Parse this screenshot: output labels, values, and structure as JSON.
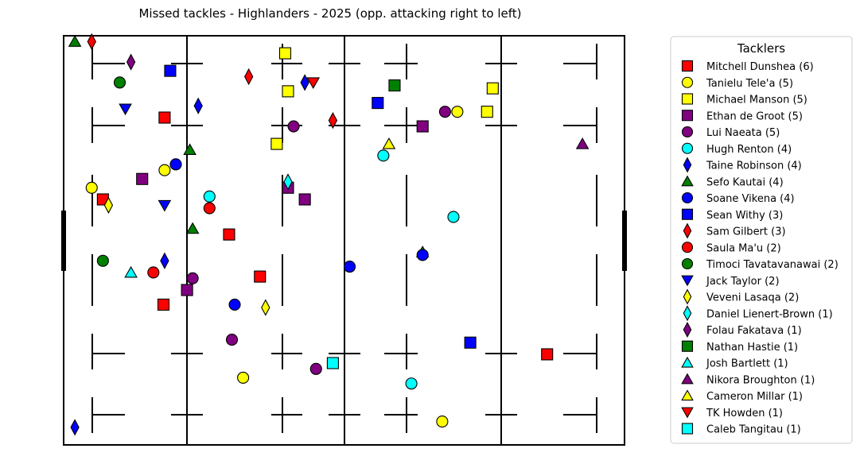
{
  "chart_data": {
    "type": "scatter",
    "title": "Missed tackles - Highlanders - 2025  (opp. attacking right to left)",
    "xlim": [
      0,
      100
    ],
    "ylim": [
      0,
      70
    ],
    "grid": false,
    "legend": {
      "title": "Tacklers",
      "placement": "right"
    },
    "series": [
      {
        "name": "Mitchell Dunshea (6)",
        "marker": "square",
        "color": "#ff0000",
        "points": [
          [
            7.0,
            42.0
          ],
          [
            29.5,
            36.0
          ],
          [
            17.8,
            24.0
          ],
          [
            35.0,
            28.8
          ],
          [
            86.2,
            15.5
          ],
          [
            18.0,
            56.0
          ]
        ]
      },
      {
        "name": "Tanielu Tele'a (5)",
        "marker": "circle",
        "color": "#ffff00",
        "points": [
          [
            5.0,
            44.0
          ],
          [
            18.0,
            47.0
          ],
          [
            70.2,
            57.0
          ],
          [
            32.0,
            11.5
          ],
          [
            67.5,
            4.0
          ]
        ]
      },
      {
        "name": "Michael Manson (5)",
        "marker": "square",
        "color": "#ffff00",
        "points": [
          [
            39.5,
            67.0
          ],
          [
            40.0,
            60.5
          ],
          [
            38.0,
            51.5
          ],
          [
            75.5,
            57.0
          ],
          [
            76.5,
            61.0
          ]
        ]
      },
      {
        "name": "Ethan de Groot (5)",
        "marker": "square",
        "color": "#800080",
        "points": [
          [
            14.0,
            45.5
          ],
          [
            40.0,
            44.0
          ],
          [
            43.0,
            42.0
          ],
          [
            64.0,
            54.5
          ],
          [
            22.0,
            26.5
          ]
        ]
      },
      {
        "name": "Lui Naeata (5)",
        "marker": "circle",
        "color": "#800080",
        "points": [
          [
            41.0,
            54.5
          ],
          [
            68.0,
            57.0
          ],
          [
            23.0,
            28.5
          ],
          [
            30.0,
            18.0
          ],
          [
            45.0,
            13.0
          ]
        ]
      },
      {
        "name": "Hugh Renton (4)",
        "marker": "circle",
        "color": "#00ffff",
        "points": [
          [
            26.0,
            42.5
          ],
          [
            57.0,
            49.5
          ],
          [
            69.5,
            39.0
          ],
          [
            62.0,
            10.5
          ]
        ]
      },
      {
        "name": "Taine Robinson (4)",
        "marker": "diamond",
        "color": "#0000ff",
        "points": [
          [
            24.0,
            58.0
          ],
          [
            43.0,
            62.0
          ],
          [
            18.0,
            31.5
          ],
          [
            2.0,
            3.0
          ]
        ]
      },
      {
        "name": "Sefo Kautai (4)",
        "marker": "triangle-up",
        "color": "#008000",
        "points": [
          [
            2.0,
            69.0
          ],
          [
            22.5,
            50.5
          ],
          [
            23.0,
            37.0
          ],
          [
            64.0,
            33.0
          ]
        ]
      },
      {
        "name": "Soane Vikena (4)",
        "marker": "circle",
        "color": "#0000ff",
        "points": [
          [
            51.0,
            30.5
          ],
          [
            64.0,
            32.5
          ],
          [
            30.5,
            24.0
          ],
          [
            20.0,
            48.0
          ]
        ]
      },
      {
        "name": "Sean Withy (3)",
        "marker": "square",
        "color": "#0000ff",
        "points": [
          [
            19.0,
            64.0
          ],
          [
            56.0,
            58.5
          ],
          [
            72.5,
            17.5
          ]
        ]
      },
      {
        "name": "Sam Gilbert (3)",
        "marker": "diamond",
        "color": "#ff0000",
        "points": [
          [
            5.0,
            69.0
          ],
          [
            33.0,
            63.0
          ],
          [
            48.0,
            55.5
          ]
        ]
      },
      {
        "name": "Saula Ma'u (2)",
        "marker": "circle",
        "color": "#ff0000",
        "points": [
          [
            26.0,
            40.5
          ],
          [
            16.0,
            29.5
          ]
        ]
      },
      {
        "name": "Timoci Tavatavanawai (2)",
        "marker": "circle",
        "color": "#008000",
        "points": [
          [
            10.0,
            62.0
          ],
          [
            7.0,
            31.5
          ]
        ]
      },
      {
        "name": "Jack Taylor (2)",
        "marker": "triangle-down",
        "color": "#0000ff",
        "points": [
          [
            11.0,
            57.5
          ],
          [
            18.0,
            41.0
          ]
        ]
      },
      {
        "name": "Veveni Lasaqa (2)",
        "marker": "diamond",
        "color": "#ffff00",
        "points": [
          [
            8.0,
            41.0
          ],
          [
            36.0,
            23.5
          ]
        ]
      },
      {
        "name": "Daniel Lienert-Brown (1)",
        "marker": "diamond",
        "color": "#00ffff",
        "points": [
          [
            40.0,
            45.0
          ]
        ]
      },
      {
        "name": "Folau Fakatava (1)",
        "marker": "diamond",
        "color": "#800080",
        "points": [
          [
            12.0,
            65.5
          ]
        ]
      },
      {
        "name": "Nathan Hastie (1)",
        "marker": "square",
        "color": "#008000",
        "points": [
          [
            59.0,
            61.5
          ]
        ]
      },
      {
        "name": "Josh Bartlett (1)",
        "marker": "triangle-up",
        "color": "#00ffff",
        "points": [
          [
            12.0,
            29.5
          ]
        ]
      },
      {
        "name": "Nikora Broughton (1)",
        "marker": "triangle-up",
        "color": "#800080",
        "points": [
          [
            92.5,
            51.5
          ]
        ]
      },
      {
        "name": "Cameron Millar (1)",
        "marker": "triangle-up",
        "color": "#ffff00",
        "points": [
          [
            58.0,
            51.5
          ]
        ]
      },
      {
        "name": "TK Howden (1)",
        "marker": "triangle-down",
        "color": "#ff0000",
        "points": [
          [
            44.5,
            62.0
          ]
        ]
      },
      {
        "name": "Caleb Tangitau (1)",
        "marker": "square",
        "color": "#00ffff",
        "points": [
          [
            48.0,
            14.0
          ]
        ]
      }
    ]
  }
}
